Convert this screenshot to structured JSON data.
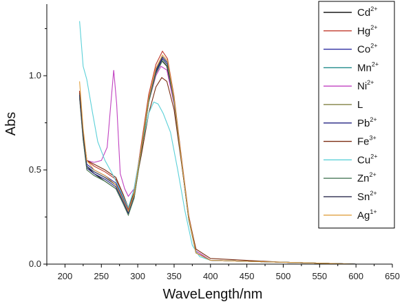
{
  "chart_data": {
    "type": "line",
    "xlabel": "WaveLength/nm",
    "ylabel": "Abs",
    "xlim": [
      175,
      650
    ],
    "ylim": [
      0,
      1.38
    ],
    "xticks": [
      200,
      250,
      300,
      350,
      400,
      450,
      500,
      550,
      600,
      650
    ],
    "yticks": [
      0.0,
      0.5,
      1.0
    ],
    "ytick_labels": [
      "0.0",
      "0.5",
      "1.0"
    ],
    "grid": false,
    "legend_position": "top-right",
    "series": [
      {
        "name": "Cd",
        "charge": "2+",
        "color": "#1a1a1a",
        "points": [
          [
            220,
            0.92
          ],
          [
            225,
            0.68
          ],
          [
            230,
            0.52
          ],
          [
            240,
            0.48
          ],
          [
            255,
            0.44
          ],
          [
            270,
            0.4
          ],
          [
            280,
            0.32
          ],
          [
            287,
            0.27
          ],
          [
            295,
            0.35
          ],
          [
            305,
            0.6
          ],
          [
            315,
            0.86
          ],
          [
            325,
            1.02
          ],
          [
            333,
            1.08
          ],
          [
            340,
            1.05
          ],
          [
            350,
            0.86
          ],
          [
            360,
            0.55
          ],
          [
            370,
            0.24
          ],
          [
            380,
            0.06
          ],
          [
            400,
            0.02
          ],
          [
            500,
            0.01
          ],
          [
            600,
            0.0
          ]
        ]
      },
      {
        "name": "Hg",
        "charge": "2+",
        "color": "#c0392b",
        "points": [
          [
            220,
            0.92
          ],
          [
            225,
            0.7
          ],
          [
            230,
            0.55
          ],
          [
            240,
            0.52
          ],
          [
            255,
            0.49
          ],
          [
            270,
            0.45
          ],
          [
            280,
            0.36
          ],
          [
            287,
            0.29
          ],
          [
            295,
            0.38
          ],
          [
            305,
            0.64
          ],
          [
            315,
            0.9
          ],
          [
            325,
            1.06
          ],
          [
            334,
            1.13
          ],
          [
            341,
            1.09
          ],
          [
            350,
            0.89
          ],
          [
            360,
            0.57
          ],
          [
            370,
            0.26
          ],
          [
            380,
            0.07
          ],
          [
            400,
            0.02
          ],
          [
            500,
            0.01
          ],
          [
            600,
            0.0
          ]
        ]
      },
      {
        "name": "Co",
        "charge": "2+",
        "color": "#2a2aa0",
        "points": [
          [
            220,
            0.9
          ],
          [
            225,
            0.68
          ],
          [
            230,
            0.53
          ],
          [
            240,
            0.5
          ],
          [
            255,
            0.47
          ],
          [
            270,
            0.43
          ],
          [
            280,
            0.35
          ],
          [
            287,
            0.28
          ],
          [
            295,
            0.37
          ],
          [
            305,
            0.62
          ],
          [
            315,
            0.88
          ],
          [
            325,
            1.03
          ],
          [
            334,
            1.1
          ],
          [
            341,
            1.07
          ],
          [
            350,
            0.88
          ],
          [
            360,
            0.56
          ],
          [
            370,
            0.25
          ],
          [
            380,
            0.06
          ],
          [
            400,
            0.02
          ],
          [
            500,
            0.01
          ],
          [
            600,
            0.0
          ]
        ]
      },
      {
        "name": "Mn",
        "charge": "2+",
        "color": "#1f8a8a",
        "points": [
          [
            220,
            0.89
          ],
          [
            225,
            0.67
          ],
          [
            230,
            0.52
          ],
          [
            240,
            0.49
          ],
          [
            255,
            0.46
          ],
          [
            270,
            0.42
          ],
          [
            280,
            0.34
          ],
          [
            287,
            0.27
          ],
          [
            295,
            0.36
          ],
          [
            305,
            0.61
          ],
          [
            315,
            0.87
          ],
          [
            325,
            1.02
          ],
          [
            334,
            1.09
          ],
          [
            341,
            1.06
          ],
          [
            350,
            0.87
          ],
          [
            360,
            0.55
          ],
          [
            370,
            0.25
          ],
          [
            380,
            0.06
          ],
          [
            400,
            0.02
          ],
          [
            500,
            0.01
          ],
          [
            600,
            0.0
          ]
        ]
      },
      {
        "name": "Ni",
        "charge": "2+",
        "color": "#c040c0",
        "points": [
          [
            220,
            0.88
          ],
          [
            225,
            0.68
          ],
          [
            230,
            0.55
          ],
          [
            240,
            0.54
          ],
          [
            250,
            0.55
          ],
          [
            258,
            0.62
          ],
          [
            263,
            0.85
          ],
          [
            267,
            1.03
          ],
          [
            271,
            0.85
          ],
          [
            276,
            0.48
          ],
          [
            282,
            0.4
          ],
          [
            287,
            0.36
          ],
          [
            295,
            0.4
          ],
          [
            305,
            0.62
          ],
          [
            315,
            0.86
          ],
          [
            325,
            1.0
          ],
          [
            332,
            1.05
          ],
          [
            340,
            1.03
          ],
          [
            350,
            0.85
          ],
          [
            360,
            0.55
          ],
          [
            370,
            0.25
          ],
          [
            380,
            0.07
          ],
          [
            400,
            0.02
          ],
          [
            500,
            0.01
          ],
          [
            600,
            0.0
          ]
        ]
      },
      {
        "name": "L",
        "charge": "",
        "color": "#8a8a50",
        "points": [
          [
            220,
            0.88
          ],
          [
            225,
            0.66
          ],
          [
            230,
            0.5
          ],
          [
            240,
            0.47
          ],
          [
            255,
            0.44
          ],
          [
            270,
            0.4
          ],
          [
            280,
            0.32
          ],
          [
            287,
            0.26
          ],
          [
            295,
            0.35
          ],
          [
            305,
            0.6
          ],
          [
            315,
            0.86
          ],
          [
            325,
            1.01
          ],
          [
            334,
            1.08
          ],
          [
            341,
            1.05
          ],
          [
            350,
            0.86
          ],
          [
            360,
            0.55
          ],
          [
            370,
            0.24
          ],
          [
            380,
            0.06
          ],
          [
            400,
            0.02
          ],
          [
            500,
            0.01
          ],
          [
            600,
            0.0
          ]
        ]
      },
      {
        "name": "Pb",
        "charge": "2+",
        "color": "#202080",
        "points": [
          [
            220,
            0.9
          ],
          [
            225,
            0.67
          ],
          [
            230,
            0.51
          ],
          [
            240,
            0.48
          ],
          [
            255,
            0.45
          ],
          [
            270,
            0.41
          ],
          [
            280,
            0.33
          ],
          [
            287,
            0.27
          ],
          [
            295,
            0.36
          ],
          [
            305,
            0.61
          ],
          [
            315,
            0.87
          ],
          [
            325,
            1.02
          ],
          [
            334,
            1.09
          ],
          [
            341,
            1.06
          ],
          [
            350,
            0.87
          ],
          [
            360,
            0.55
          ],
          [
            370,
            0.25
          ],
          [
            380,
            0.06
          ],
          [
            400,
            0.02
          ],
          [
            500,
            0.01
          ],
          [
            600,
            0.0
          ]
        ]
      },
      {
        "name": "Fe",
        "charge": "3+",
        "color": "#7a2a10",
        "points": [
          [
            220,
            0.91
          ],
          [
            225,
            0.7
          ],
          [
            230,
            0.55
          ],
          [
            240,
            0.53
          ],
          [
            255,
            0.5
          ],
          [
            270,
            0.46
          ],
          [
            280,
            0.37
          ],
          [
            287,
            0.3
          ],
          [
            295,
            0.38
          ],
          [
            305,
            0.58
          ],
          [
            315,
            0.8
          ],
          [
            325,
            0.94
          ],
          [
            333,
            0.99
          ],
          [
            340,
            0.97
          ],
          [
            350,
            0.82
          ],
          [
            360,
            0.54
          ],
          [
            370,
            0.25
          ],
          [
            380,
            0.08
          ],
          [
            400,
            0.03
          ],
          [
            500,
            0.01
          ],
          [
            600,
            0.0
          ]
        ]
      },
      {
        "name": "Cu",
        "charge": "2+",
        "color": "#5ad0d8",
        "points": [
          [
            220,
            1.29
          ],
          [
            225,
            1.05
          ],
          [
            230,
            0.98
          ],
          [
            238,
            0.8
          ],
          [
            245,
            0.65
          ],
          [
            255,
            0.55
          ],
          [
            265,
            0.48
          ],
          [
            275,
            0.4
          ],
          [
            282,
            0.34
          ],
          [
            287,
            0.3
          ],
          [
            295,
            0.4
          ],
          [
            305,
            0.62
          ],
          [
            315,
            0.8
          ],
          [
            322,
            0.86
          ],
          [
            328,
            0.85
          ],
          [
            335,
            0.8
          ],
          [
            345,
            0.7
          ],
          [
            355,
            0.5
          ],
          [
            365,
            0.28
          ],
          [
            375,
            0.1
          ],
          [
            385,
            0.04
          ],
          [
            400,
            0.02
          ],
          [
            500,
            0.01
          ],
          [
            600,
            0.0
          ]
        ]
      },
      {
        "name": "Zn",
        "charge": "2+",
        "color": "#4a7a5a",
        "points": [
          [
            220,
            0.89
          ],
          [
            225,
            0.66
          ],
          [
            230,
            0.5
          ],
          [
            240,
            0.47
          ],
          [
            255,
            0.44
          ],
          [
            270,
            0.4
          ],
          [
            280,
            0.32
          ],
          [
            287,
            0.26
          ],
          [
            295,
            0.35
          ],
          [
            305,
            0.6
          ],
          [
            315,
            0.86
          ],
          [
            325,
            1.01
          ],
          [
            334,
            1.08
          ],
          [
            341,
            1.05
          ],
          [
            350,
            0.86
          ],
          [
            360,
            0.55
          ],
          [
            370,
            0.24
          ],
          [
            380,
            0.06
          ],
          [
            400,
            0.02
          ],
          [
            500,
            0.01
          ],
          [
            600,
            0.0
          ]
        ]
      },
      {
        "name": "Sn",
        "charge": "2+",
        "color": "#3a3a5a",
        "points": [
          [
            220,
            0.9
          ],
          [
            225,
            0.68
          ],
          [
            230,
            0.52
          ],
          [
            240,
            0.49
          ],
          [
            255,
            0.46
          ],
          [
            270,
            0.42
          ],
          [
            280,
            0.34
          ],
          [
            287,
            0.28
          ],
          [
            295,
            0.37
          ],
          [
            305,
            0.62
          ],
          [
            315,
            0.88
          ],
          [
            325,
            1.03
          ],
          [
            334,
            1.1
          ],
          [
            341,
            1.07
          ],
          [
            350,
            0.88
          ],
          [
            360,
            0.56
          ],
          [
            370,
            0.25
          ],
          [
            380,
            0.06
          ],
          [
            400,
            0.02
          ],
          [
            500,
            0.01
          ],
          [
            600,
            0.0
          ]
        ]
      },
      {
        "name": "Ag",
        "charge": "1+",
        "color": "#e0a040",
        "points": [
          [
            220,
            0.97
          ],
          [
            225,
            0.72
          ],
          [
            230,
            0.55
          ],
          [
            240,
            0.5
          ],
          [
            255,
            0.47
          ],
          [
            270,
            0.42
          ],
          [
            280,
            0.34
          ],
          [
            287,
            0.28
          ],
          [
            295,
            0.37
          ],
          [
            305,
            0.62
          ],
          [
            315,
            0.88
          ],
          [
            325,
            1.04
          ],
          [
            334,
            1.11
          ],
          [
            341,
            1.08
          ],
          [
            350,
            0.88
          ],
          [
            360,
            0.56
          ],
          [
            370,
            0.25
          ],
          [
            380,
            0.06
          ],
          [
            400,
            0.02
          ],
          [
            500,
            0.01
          ],
          [
            600,
            0.0
          ]
        ]
      }
    ]
  }
}
